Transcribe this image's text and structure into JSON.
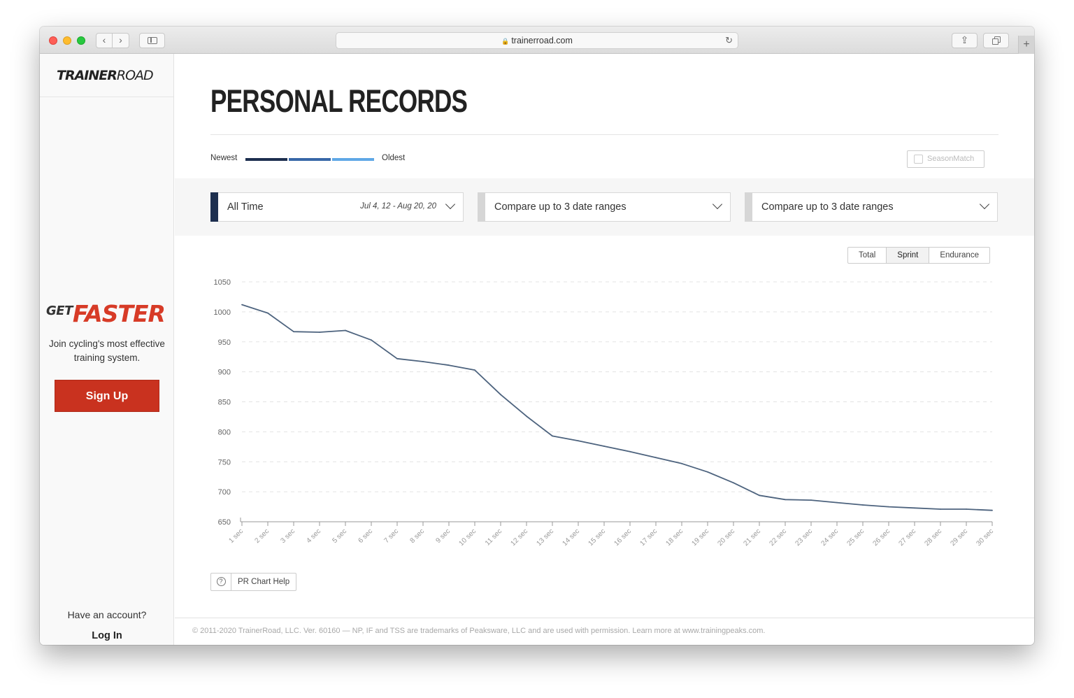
{
  "browser": {
    "url": "trainerroad.com",
    "back_glyph": "‹",
    "forward_glyph": "›",
    "share_glyph": "⇪",
    "new_tab_glyph": "+"
  },
  "sidebar": {
    "logo_bold": "TRAINER",
    "logo_light": "ROAD",
    "promo_get": "GET",
    "promo_faster": "FASTER",
    "promo_text": "Join cycling's most effective training system.",
    "signup_label": "Sign Up",
    "account_prompt": "Have an account?",
    "login_label": "Log In"
  },
  "page": {
    "title": "PERSONAL RECORDS",
    "legend": {
      "newest": "Newest",
      "oldest": "Oldest",
      "colors": [
        "#1d2f4f",
        "#3867a8",
        "#5fa8e6"
      ]
    },
    "seasonmatch_label": "SeasonMatch",
    "filters": [
      {
        "label": "All Time",
        "range": "Jul 4, 12 - Aug 20, 20",
        "stripe_color": "#1d2f4f"
      },
      {
        "label": "Compare up to 3 date ranges",
        "range": "",
        "stripe_color": "#d6d6d6"
      },
      {
        "label": "Compare up to 3 date ranges",
        "range": "",
        "stripe_color": "#d6d6d6"
      }
    ],
    "tabs": [
      {
        "label": "Total",
        "active": false
      },
      {
        "label": "Sprint",
        "active": true
      },
      {
        "label": "Endurance",
        "active": false
      }
    ],
    "help_icon": "?",
    "help_label": "PR Chart Help",
    "footer": "© 2011-2020 TrainerRoad, LLC. Ver. 60160 — NP, IF and TSS are trademarks of Peaksware, LLC and are used with permission. Learn more at www.trainingpeaks.com."
  },
  "chart_data": {
    "type": "line",
    "xlabel": "",
    "ylabel": "",
    "ylim": [
      650,
      1050
    ],
    "y_ticks": [
      650,
      700,
      750,
      800,
      850,
      900,
      950,
      1000,
      1050
    ],
    "grid": true,
    "categories": [
      "1 sec",
      "2 sec",
      "3 sec",
      "4 sec",
      "5 sec",
      "6 sec",
      "7 sec",
      "8 sec",
      "9 sec",
      "10 sec",
      "11 sec",
      "12 sec",
      "13 sec",
      "14 sec",
      "15 sec",
      "16 sec",
      "17 sec",
      "18 sec",
      "19 sec",
      "20 sec",
      "21 sec",
      "22 sec",
      "23 sec",
      "24 sec",
      "25 sec",
      "26 sec",
      "27 sec",
      "28 sec",
      "29 sec",
      "30 sec"
    ],
    "series": [
      {
        "color": "#4d637e",
        "values": [
          1012,
          998,
          967,
          966,
          969,
          953,
          922,
          917,
          911,
          903,
          862,
          826,
          793,
          785,
          776,
          767,
          757,
          747,
          733,
          715,
          694,
          687,
          686,
          682,
          678,
          675,
          673,
          671,
          671,
          669
        ]
      }
    ]
  }
}
